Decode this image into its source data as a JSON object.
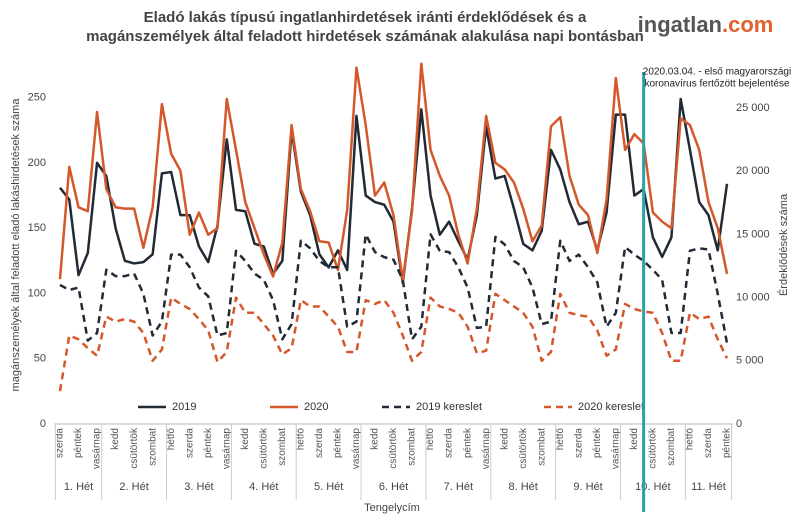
{
  "chart_data": {
    "type": "line",
    "title": [
      "Eladó lakás típusú ingatlanhirdetések iránti érdeklődések és a",
      "magánszemélyek által feladott hirdetések számának alakulása napi bontásban"
    ],
    "logo": {
      "name": "ingatlan",
      "suffix": ".com"
    },
    "y_label": "magánszemélyek által feladott eladó lakáshirdetések száma",
    "y2_label": "Érdeklődések száma",
    "x_label": "Tengelycím",
    "categories": [
      "szerda",
      null,
      "péntek",
      null,
      "vasárnap",
      null,
      "kedd",
      null,
      "csütörtök",
      null,
      "szombat",
      null,
      "hétfő",
      null,
      "szerda",
      null,
      "péntek",
      null,
      "vasárnap",
      null,
      "kedd",
      null,
      "csütörtök",
      null,
      "szombat",
      null,
      "hétfő",
      null,
      "szerda",
      null,
      "péntek",
      null,
      "vasárnap",
      null,
      "kedd",
      null,
      "csütörtök",
      null,
      "szombat",
      null,
      "hétfő",
      null,
      "szerda",
      null,
      "péntek",
      null,
      "vasárnap",
      null,
      "kedd",
      null,
      "csütörtök",
      null,
      "szombat",
      null,
      "hétfő",
      null,
      "szerda",
      null,
      "péntek",
      null,
      "vasárnap",
      null,
      "kedd",
      null,
      "csütörtök",
      null,
      "szombat",
      null,
      "hétfő",
      null,
      "szerda",
      null,
      "péntek"
    ],
    "week_groups": [
      "1. Hét",
      "2. Hét",
      "3. Hét",
      "4. Hét",
      "5. Hét",
      "6. Hét",
      "7. Hét",
      "8. Hét",
      "9. Hét",
      "10. Hét",
      "11. Hét"
    ],
    "ylim": [
      0,
      275
    ],
    "yticks": [
      0,
      50,
      100,
      150,
      200,
      250
    ],
    "y2lim": [
      0,
      28400
    ],
    "y2ticks": [
      0,
      {
        "value": 5000,
        "label": "5 000"
      },
      {
        "value": 10000,
        "label": "10 000"
      },
      {
        "value": 15000,
        "label": "15 000"
      },
      {
        "value": 20000,
        "label": "20 000"
      },
      {
        "value": 25000,
        "label": "25 000"
      }
    ],
    "series": [
      {
        "name": "2019",
        "color": "#222a35",
        "dashed": false,
        "values": [
          181,
          172,
          114,
          131,
          200,
          190,
          150,
          125,
          123,
          124,
          130,
          192,
          193,
          160,
          160,
          136,
          124,
          152,
          218,
          164,
          163,
          138,
          136,
          115,
          125,
          225,
          178,
          160,
          130,
          120,
          133,
          118,
          236,
          175,
          170,
          168,
          155,
          108,
          165,
          241,
          175,
          145,
          155,
          140,
          126,
          160,
          228,
          188,
          190,
          165,
          138,
          133,
          148,
          210,
          195,
          170,
          153,
          155,
          133,
          162,
          237,
          237,
          175,
          180,
          143,
          128,
          143,
          249,
          210,
          170,
          160,
          133,
          184
        ]
      },
      {
        "name": "2020",
        "color": "#d4582b",
        "dashed": false,
        "values": [
          111,
          197,
          166,
          163,
          239,
          180,
          166,
          165,
          165,
          135,
          166,
          245,
          207,
          194,
          145,
          162,
          145,
          150,
          249,
          210,
          170,
          150,
          130,
          113,
          139,
          229,
          180,
          163,
          140,
          139,
          118,
          164,
          273,
          229,
          175,
          185,
          160,
          110,
          163,
          276,
          210,
          190,
          175,
          145,
          123,
          165,
          236,
          200,
          195,
          185,
          165,
          140,
          152,
          228,
          235,
          190,
          168,
          160,
          131,
          172,
          265,
          210,
          222,
          215,
          162,
          155,
          150,
          234,
          229,
          210,
          170,
          150,
          115
        ]
      },
      {
        "name": "2019 kereslet",
        "color": "#222a35",
        "dashed": true,
        "axis": "y2",
        "values": [
          11000,
          10600,
          10800,
          6600,
          7200,
          12200,
          11700,
          11700,
          11900,
          10300,
          7000,
          8100,
          13400,
          13400,
          12400,
          10800,
          10100,
          7000,
          7200,
          13700,
          12900,
          11900,
          11400,
          9800,
          6700,
          7900,
          14500,
          13900,
          12900,
          12400,
          12400,
          7700,
          8100,
          15000,
          13600,
          13200,
          13000,
          11400,
          6700,
          7700,
          15000,
          13700,
          13600,
          12400,
          10800,
          7600,
          7700,
          14800,
          14200,
          12900,
          12400,
          10800,
          7900,
          8100,
          14500,
          12900,
          13400,
          12400,
          11200,
          7700,
          8800,
          14000,
          13400,
          12900,
          12200,
          11400,
          7200,
          7200,
          13700,
          13900,
          13800,
          10300,
          6400
        ]
      },
      {
        "name": "2020 kereslet",
        "color": "#d4582b",
        "dashed": true,
        "axis": "y2",
        "values": [
          2600,
          7000,
          6700,
          6000,
          5400,
          8500,
          8100,
          8300,
          8100,
          7200,
          5000,
          5900,
          10000,
          9500,
          9100,
          8300,
          7400,
          4900,
          5700,
          10000,
          8800,
          8800,
          7900,
          7000,
          5500,
          6000,
          9800,
          9300,
          9300,
          8500,
          7700,
          5700,
          5700,
          9800,
          9500,
          9800,
          8800,
          7000,
          5000,
          5700,
          10000,
          9300,
          9100,
          8800,
          7700,
          5600,
          5800,
          10300,
          9800,
          9300,
          8800,
          7700,
          5000,
          5700,
          10300,
          8800,
          8600,
          8500,
          7400,
          5400,
          5900,
          9500,
          9100,
          8900,
          8800,
          7200,
          5000,
          5000,
          8800,
          8300,
          8500,
          6700,
          5200
        ]
      }
    ],
    "annotation": {
      "lines": [
        "2020.03.04. - első magyarországi",
        "koronavírus fertőzött bejelentése"
      ],
      "category_index": 63,
      "color": "#2aa3a8"
    }
  }
}
